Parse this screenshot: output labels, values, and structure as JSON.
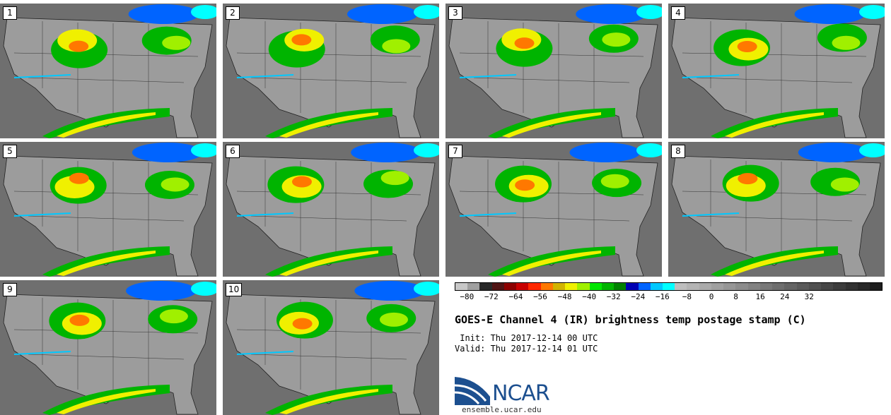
{
  "panels": [
    {
      "label": "1"
    },
    {
      "label": "2"
    },
    {
      "label": "3"
    },
    {
      "label": "4"
    },
    {
      "label": "5"
    },
    {
      "label": "6"
    },
    {
      "label": "7"
    },
    {
      "label": "8"
    },
    {
      "label": "9"
    },
    {
      "label": "10"
    }
  ],
  "legend": {
    "colors": [
      "#c8c8c8",
      "#a0a0a0",
      "#282828",
      "#501414",
      "#8c0000",
      "#c80000",
      "#ff2800",
      "#ff7800",
      "#d2b400",
      "#f0f000",
      "#a0f000",
      "#00e600",
      "#00b400",
      "#008200",
      "#0000b4",
      "#0064ff",
      "#00c8ff",
      "#00ffff",
      "#bebebe",
      "#b4b4b4",
      "#aaaaaa",
      "#a0a0a0",
      "#969696",
      "#8c8c8c",
      "#828282",
      "#787878",
      "#6e6e6e",
      "#646464",
      "#5a5a5a",
      "#505050",
      "#464646",
      "#3c3c3c",
      "#323232",
      "#282828",
      "#1e1e1e"
    ],
    "ticks": [
      "−80",
      "−72",
      "−64",
      "−56",
      "−48",
      "−40",
      "−32",
      "−24",
      "−16",
      "−8",
      "0",
      "8",
      "16",
      "24",
      "32"
    ]
  },
  "title": "GOES-E Channel 4 (IR) brightness temp postage stamp (C)",
  "init": " Init: Thu 2017-12-14 00 UTC",
  "valid": "Valid: Thu 2017-12-14 01 UTC",
  "logo": {
    "text": "NCAR",
    "site": "ensemble.ucar.edu"
  }
}
